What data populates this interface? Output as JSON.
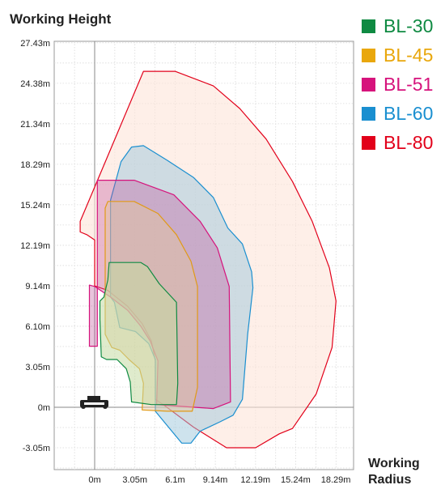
{
  "chart_data": {
    "type": "area",
    "title": "Working Height",
    "xlabel": "Working\nRadius",
    "ylabel": "",
    "xlim": [
      -3.05,
      19.2
    ],
    "ylim": [
      -4.57,
      27.43
    ],
    "x_ticks": [
      {
        "value": 0,
        "label": "0m"
      },
      {
        "value": 3.05,
        "label": "3.05m"
      },
      {
        "value": 6.1,
        "label": "6.1m"
      },
      {
        "value": 9.14,
        "label": "9.14m"
      },
      {
        "value": 12.19,
        "label": "12.19m"
      },
      {
        "value": 15.24,
        "label": "15.24m"
      },
      {
        "value": 18.29,
        "label": "18.29m"
      }
    ],
    "y_ticks": [
      {
        "value": 27.43,
        "label": "27.43m"
      },
      {
        "value": 24.38,
        "label": "24.38m"
      },
      {
        "value": 21.34,
        "label": "21.34m"
      },
      {
        "value": 18.29,
        "label": "18.29m"
      },
      {
        "value": 15.24,
        "label": "15.24m"
      },
      {
        "value": 12.19,
        "label": "12.19m"
      },
      {
        "value": 9.14,
        "label": "9.14m"
      },
      {
        "value": 6.1,
        "label": "6.10m"
      },
      {
        "value": 3.05,
        "label": "3.05m"
      },
      {
        "value": 0,
        "label": "0m"
      },
      {
        "value": -3.05,
        "label": "-3.05m"
      }
    ],
    "grid": true,
    "legend_position": "top-right",
    "series": [
      {
        "name": "BL-80",
        "color": "#e2001a",
        "fill": "#fde5d8",
        "fill_opacity": 0.6,
        "points": [
          [
            -1.1,
            14.0
          ],
          [
            3.7,
            25.3
          ],
          [
            6.1,
            25.3
          ],
          [
            9.0,
            24.2
          ],
          [
            11.0,
            22.5
          ],
          [
            13.0,
            20.2
          ],
          [
            15.0,
            17.0
          ],
          [
            16.5,
            14.0
          ],
          [
            17.8,
            10.5
          ],
          [
            18.3,
            8.0
          ],
          [
            18.0,
            4.5
          ],
          [
            16.8,
            1.0
          ],
          [
            15.0,
            -1.6
          ],
          [
            14.0,
            -2.0
          ],
          [
            12.2,
            -3.05
          ],
          [
            10.0,
            -3.05
          ],
          [
            7.5,
            -1.5
          ],
          [
            5.2,
            0.2
          ],
          [
            4.6,
            0.6
          ],
          [
            4.6,
            3.5
          ],
          [
            4.3,
            5.0
          ],
          [
            3.6,
            6.3
          ],
          [
            2.5,
            7.6
          ],
          [
            1.0,
            8.8
          ],
          [
            0,
            9.14
          ],
          [
            0,
            12.6
          ],
          [
            -0.6,
            13.0
          ],
          [
            -1.1,
            13.2
          ]
        ]
      },
      {
        "name": "BL-60",
        "color": "#1a8fd0",
        "fill": "#9ec8dc",
        "fill_opacity": 0.5,
        "points": [
          [
            1.2,
            15.6
          ],
          [
            2.0,
            18.5
          ],
          [
            2.8,
            19.6
          ],
          [
            3.7,
            19.7
          ],
          [
            5.5,
            18.6
          ],
          [
            7.5,
            17.3
          ],
          [
            9.0,
            15.8
          ],
          [
            10.1,
            13.5
          ],
          [
            11.2,
            12.3
          ],
          [
            11.9,
            10.2
          ],
          [
            12.0,
            9.0
          ],
          [
            11.6,
            5.5
          ],
          [
            11.2,
            0.6
          ],
          [
            10.5,
            -0.6
          ],
          [
            9.5,
            -1.1
          ],
          [
            8.0,
            -1.8
          ],
          [
            7.3,
            -2.7
          ],
          [
            6.6,
            -2.7
          ],
          [
            5.6,
            -1.5
          ],
          [
            4.6,
            -0.3
          ],
          [
            4.6,
            3.6
          ],
          [
            4.1,
            4.8
          ],
          [
            3.1,
            5.7
          ],
          [
            1.9,
            6.0
          ],
          [
            1.5,
            7.9
          ],
          [
            1.2,
            8.3
          ],
          [
            1.2,
            12.6
          ]
        ]
      },
      {
        "name": "BL-51",
        "color": "#d6137c",
        "fill": "#c0539a",
        "fill_opacity": 0.35,
        "points": [
          [
            0.2,
            17.1
          ],
          [
            3.0,
            17.1
          ],
          [
            6.0,
            16.0
          ],
          [
            8.0,
            14.0
          ],
          [
            9.3,
            12.0
          ],
          [
            10.2,
            9.1
          ],
          [
            10.3,
            0.4
          ],
          [
            9.0,
            -0.1
          ],
          [
            6.1,
            0.1
          ],
          [
            4.7,
            0.2
          ],
          [
            4.8,
            3.5
          ],
          [
            4.2,
            5.0
          ],
          [
            3.5,
            6.1
          ],
          [
            2.5,
            7.3
          ],
          [
            1.2,
            8.3
          ],
          [
            0,
            9.1
          ],
          [
            -0.4,
            9.2
          ],
          [
            -0.4,
            4.6
          ],
          [
            0.2,
            4.6
          ]
        ]
      },
      {
        "name": "BL-45",
        "color": "#e19a16",
        "fill": "#e6c59c",
        "fill_opacity": 0.45,
        "points": [
          [
            0.8,
            15.0
          ],
          [
            1.0,
            15.5
          ],
          [
            3.0,
            15.5
          ],
          [
            4.8,
            14.6
          ],
          [
            6.2,
            13.0
          ],
          [
            7.3,
            11.0
          ],
          [
            7.8,
            9.1
          ],
          [
            7.8,
            1.5
          ],
          [
            7.4,
            -0.3
          ],
          [
            5.5,
            -0.3
          ],
          [
            3.6,
            -0.2
          ],
          [
            3.7,
            1.8
          ],
          [
            3.4,
            2.9
          ],
          [
            2.6,
            3.6
          ],
          [
            1.9,
            4.3
          ],
          [
            1.3,
            4.5
          ],
          [
            0.8,
            5.5
          ],
          [
            0.8,
            10.5
          ]
        ]
      },
      {
        "name": "BL-30",
        "color": "#0f8a42",
        "fill": "#c5dba2",
        "fill_opacity": 0.55,
        "points": [
          [
            0.7,
            8.3
          ],
          [
            1.0,
            9.6
          ],
          [
            1.1,
            10.9
          ],
          [
            3.5,
            10.9
          ],
          [
            4.0,
            10.6
          ],
          [
            4.9,
            9.3
          ],
          [
            6.2,
            7.9
          ],
          [
            6.3,
            1.8
          ],
          [
            6.2,
            0.2
          ],
          [
            5.2,
            0.2
          ],
          [
            4.3,
            0.2
          ],
          [
            2.8,
            0.4
          ],
          [
            2.7,
            1.9
          ],
          [
            2.4,
            2.9
          ],
          [
            1.7,
            3.6
          ],
          [
            0.9,
            3.6
          ],
          [
            0.5,
            3.8
          ],
          [
            0.4,
            6.6
          ],
          [
            0.4,
            8.0
          ]
        ]
      }
    ]
  },
  "legend": [
    {
      "label": "BL-30",
      "color": "#0f8a42"
    },
    {
      "label": "BL-45",
      "color": "#e9a70c"
    },
    {
      "label": "BL-51",
      "color": "#d6137c"
    },
    {
      "label": "BL-60",
      "color": "#1a8fd0"
    },
    {
      "label": "BL-80",
      "color": "#e2001a"
    }
  ],
  "icons": {
    "machine": "compact-loader-icon"
  }
}
